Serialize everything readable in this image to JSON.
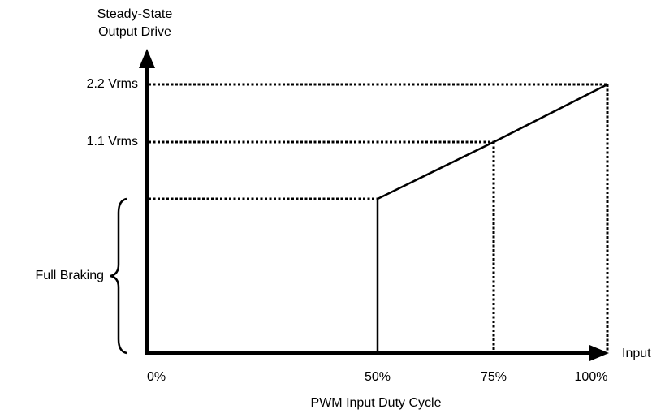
{
  "y_axis": {
    "label_lines": [
      "Steady-State",
      "Output Drive"
    ],
    "levels": [
      "2.2 Vrms",
      "1.1 Vrms"
    ],
    "region": "Full Braking"
  },
  "x_axis": {
    "label": "Input",
    "ticks": [
      "0%",
      "50%",
      "75%",
      "100%"
    ],
    "caption": "PWM Input Duty Cycle"
  }
}
